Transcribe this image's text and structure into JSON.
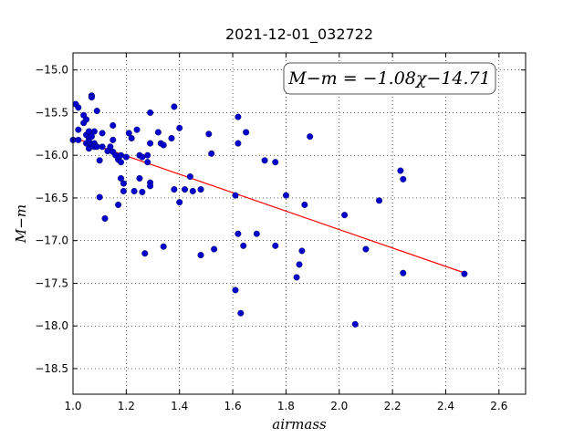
{
  "chart_data": {
    "type": "scatter",
    "title": "2021-12-01_032722",
    "xlabel": "airmass",
    "ylabel": "M−m",
    "xlim": [
      1.0,
      2.7
    ],
    "ylim": [
      -18.8,
      -14.8
    ],
    "y_inverted": true,
    "grid": true,
    "grid_style": "dotted",
    "xticks": [
      "1.0",
      "1.2",
      "1.4",
      "1.6",
      "1.8",
      "2.0",
      "2.2",
      "2.4",
      "2.6"
    ],
    "yticks": [
      "−15.0",
      "−15.5",
      "−16.0",
      "−16.5",
      "−17.0",
      "−17.5",
      "−18.0",
      "−18.5"
    ],
    "annotation": "M−m = −1.08χ−14.71",
    "annotation_position": "top-right",
    "point_color": "#0000cc",
    "fit_color": "#ff0000",
    "fit": {
      "slope": -1.08,
      "intercept": -14.71,
      "x_range": [
        1.0,
        2.47
      ]
    },
    "points": [
      [
        1.0,
        -15.82
      ],
      [
        1.01,
        -15.4
      ],
      [
        1.02,
        -15.44
      ],
      [
        1.02,
        -15.7
      ],
      [
        1.02,
        -15.82
      ],
      [
        1.04,
        -15.53
      ],
      [
        1.04,
        -15.62
      ],
      [
        1.05,
        -15.58
      ],
      [
        1.05,
        -15.76
      ],
      [
        1.05,
        -15.86
      ],
      [
        1.06,
        -15.72
      ],
      [
        1.06,
        -15.8
      ],
      [
        1.06,
        -15.84
      ],
      [
        1.06,
        -15.92
      ],
      [
        1.07,
        -15.3
      ],
      [
        1.07,
        -15.32
      ],
      [
        1.07,
        -15.78
      ],
      [
        1.07,
        -15.88
      ],
      [
        1.08,
        -15.72
      ],
      [
        1.08,
        -15.86
      ],
      [
        1.08,
        -15.9
      ],
      [
        1.09,
        -15.48
      ],
      [
        1.09,
        -15.9
      ],
      [
        1.1,
        -16.06
      ],
      [
        1.1,
        -16.49
      ],
      [
        1.11,
        -15.74
      ],
      [
        1.11,
        -15.9
      ],
      [
        1.12,
        -16.74
      ],
      [
        1.13,
        -15.95
      ],
      [
        1.14,
        -15.9
      ],
      [
        1.15,
        -15.65
      ],
      [
        1.15,
        -15.82
      ],
      [
        1.15,
        -15.96
      ],
      [
        1.16,
        -16.0
      ],
      [
        1.17,
        -16.05
      ],
      [
        1.17,
        -16.58
      ],
      [
        1.18,
        -16.0
      ],
      [
        1.18,
        -16.08
      ],
      [
        1.18,
        -16.27
      ],
      [
        1.19,
        -16.33
      ],
      [
        1.19,
        -16.42
      ],
      [
        1.2,
        -16.02
      ],
      [
        1.21,
        -15.74
      ],
      [
        1.22,
        -15.8
      ],
      [
        1.23,
        -16.42
      ],
      [
        1.24,
        -15.7
      ],
      [
        1.25,
        -16.0
      ],
      [
        1.25,
        -16.27
      ],
      [
        1.26,
        -16.43
      ],
      [
        1.26,
        -16.02
      ],
      [
        1.27,
        -17.15
      ],
      [
        1.28,
        -16.0
      ],
      [
        1.28,
        -16.08
      ],
      [
        1.29,
        -15.5
      ],
      [
        1.29,
        -15.86
      ],
      [
        1.29,
        -16.32
      ],
      [
        1.29,
        -16.36
      ],
      [
        1.32,
        -15.73
      ],
      [
        1.33,
        -15.86
      ],
      [
        1.34,
        -15.88
      ],
      [
        1.34,
        -17.07
      ],
      [
        1.37,
        -15.8
      ],
      [
        1.38,
        -15.43
      ],
      [
        1.38,
        -16.4
      ],
      [
        1.4,
        -15.68
      ],
      [
        1.4,
        -16.55
      ],
      [
        1.42,
        -16.4
      ],
      [
        1.44,
        -16.25
      ],
      [
        1.45,
        -16.42
      ],
      [
        1.48,
        -16.4
      ],
      [
        1.48,
        -17.17
      ],
      [
        1.51,
        -15.75
      ],
      [
        1.52,
        -15.98
      ],
      [
        1.53,
        -17.1
      ],
      [
        1.61,
        -17.58
      ],
      [
        1.61,
        -16.47
      ],
      [
        1.62,
        -15.55
      ],
      [
        1.62,
        -15.86
      ],
      [
        1.62,
        -16.92
      ],
      [
        1.63,
        -17.85
      ],
      [
        1.64,
        -17.06
      ],
      [
        1.65,
        -15.73
      ],
      [
        1.69,
        -16.92
      ],
      [
        1.72,
        -16.06
      ],
      [
        1.76,
        -16.08
      ],
      [
        1.76,
        -17.06
      ],
      [
        1.8,
        -16.47
      ],
      [
        1.84,
        -17.43
      ],
      [
        1.85,
        -17.28
      ],
      [
        1.86,
        -17.12
      ],
      [
        1.87,
        -16.58
      ],
      [
        1.89,
        -15.78
      ],
      [
        2.02,
        -16.7
      ],
      [
        2.06,
        -17.98
      ],
      [
        2.1,
        -17.1
      ],
      [
        2.15,
        -16.53
      ],
      [
        2.23,
        -16.18
      ],
      [
        2.24,
        -16.28
      ],
      [
        2.24,
        -17.38
      ],
      [
        2.47,
        -17.39
      ]
    ]
  }
}
